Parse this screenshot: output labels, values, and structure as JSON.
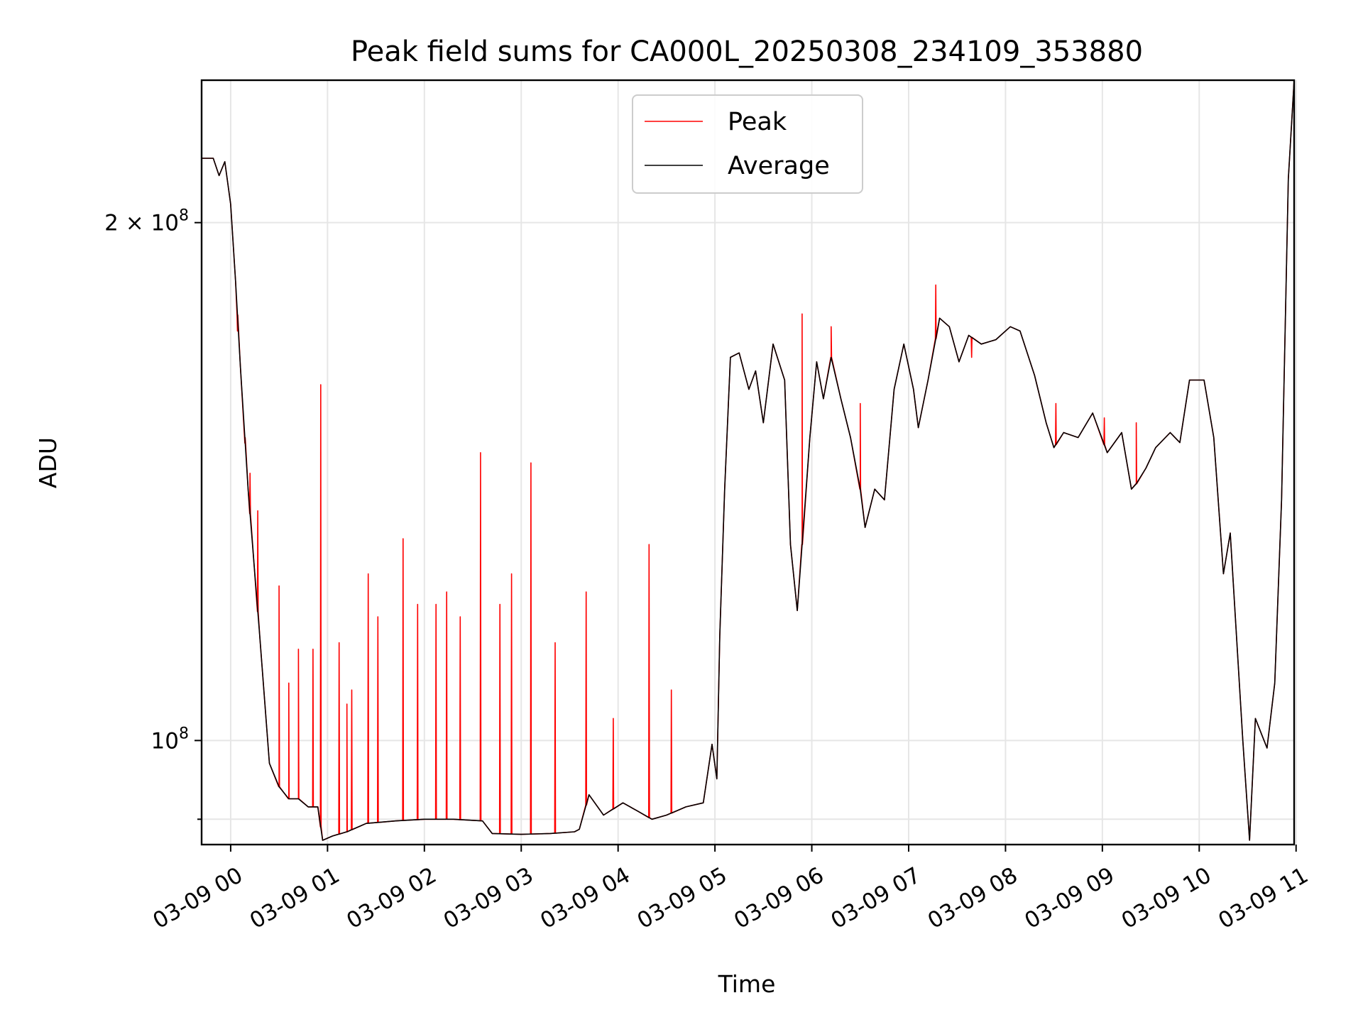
{
  "chart_data": {
    "type": "line",
    "title": "Peak field sums for CA000L_20250308_234109_353880",
    "xlabel": "Time",
    "ylabel": "ADU",
    "y_scale": "log",
    "x_range_hours": [
      -0.3,
      10.98
    ],
    "ylim": [
      87000000,
      242000000
    ],
    "grid": true,
    "legend_position": "upper-center",
    "x_ticks": [
      {
        "value": 0,
        "label": "03-09 00"
      },
      {
        "value": 1,
        "label": "03-09 01"
      },
      {
        "value": 2,
        "label": "03-09 02"
      },
      {
        "value": 3,
        "label": "03-09 03"
      },
      {
        "value": 4,
        "label": "03-09 04"
      },
      {
        "value": 5,
        "label": "03-09 05"
      },
      {
        "value": 6,
        "label": "03-09 06"
      },
      {
        "value": 7,
        "label": "03-09 07"
      },
      {
        "value": 8,
        "label": "03-09 08"
      },
      {
        "value": 9,
        "label": "03-09 09"
      },
      {
        "value": 10,
        "label": "03-09 10"
      },
      {
        "value": 11,
        "label": "03-09 11"
      }
    ],
    "y_ticks": [
      {
        "value": 100000000,
        "mantissa": "",
        "exponent": "8",
        "base": "10"
      },
      {
        "value": 200000000,
        "mantissa": "2 × ",
        "exponent": "8",
        "base": "10"
      }
    ],
    "y_minor_ticks": [
      90000000
    ],
    "series": [
      {
        "name": "Peak",
        "color": "#ff0000",
        "spikes": [
          [
            0.07,
            173000000
          ],
          [
            0.15,
            150000000
          ],
          [
            0.2,
            143000000
          ],
          [
            0.28,
            136000000
          ],
          [
            0.5,
            123000000
          ],
          [
            0.6,
            108000000
          ],
          [
            0.7,
            113000000
          ],
          [
            0.85,
            113000000
          ],
          [
            0.93,
            161000000
          ],
          [
            1.12,
            114000000
          ],
          [
            1.2,
            105000000
          ],
          [
            1.25,
            107000000
          ],
          [
            1.42,
            125000000
          ],
          [
            1.52,
            118000000
          ],
          [
            1.78,
            131000000
          ],
          [
            1.93,
            120000000
          ],
          [
            2.12,
            120000000
          ],
          [
            2.23,
            122000000
          ],
          [
            2.37,
            118000000
          ],
          [
            2.58,
            147000000
          ],
          [
            2.78,
            120000000
          ],
          [
            2.9,
            125000000
          ],
          [
            3.1,
            145000000
          ],
          [
            3.35,
            114000000
          ],
          [
            3.67,
            122000000
          ],
          [
            3.95,
            103000000
          ],
          [
            4.32,
            130000000
          ],
          [
            4.55,
            107000000
          ],
          [
            5.9,
            177000000
          ],
          [
            6.2,
            174000000
          ],
          [
            6.5,
            157000000
          ],
          [
            7.28,
            184000000
          ],
          [
            7.65,
            167000000
          ],
          [
            8.52,
            157000000
          ],
          [
            9.02,
            154000000
          ],
          [
            9.35,
            153000000
          ]
        ]
      },
      {
        "name": "Average",
        "color": "#000000",
        "points": [
          [
            -0.3,
            218000000
          ],
          [
            -0.18,
            218000000
          ],
          [
            -0.12,
            213000000
          ],
          [
            -0.06,
            217000000
          ],
          [
            0.0,
            205000000
          ],
          [
            0.05,
            185000000
          ],
          [
            0.1,
            165000000
          ],
          [
            0.18,
            140000000
          ],
          [
            0.3,
            115000000
          ],
          [
            0.4,
            97000000
          ],
          [
            0.5,
            94000000
          ],
          [
            0.6,
            92500000
          ],
          [
            0.7,
            92500000
          ],
          [
            0.8,
            91500000
          ],
          [
            0.9,
            91500000
          ],
          [
            0.95,
            87500000
          ],
          [
            1.05,
            88000000
          ],
          [
            1.2,
            88500000
          ],
          [
            1.4,
            89500000
          ],
          [
            1.7,
            89800000
          ],
          [
            2.0,
            90000000
          ],
          [
            2.3,
            90000000
          ],
          [
            2.6,
            89800000
          ],
          [
            2.7,
            88300000
          ],
          [
            3.0,
            88200000
          ],
          [
            3.3,
            88300000
          ],
          [
            3.55,
            88500000
          ],
          [
            3.6,
            88800000
          ],
          [
            3.7,
            93000000
          ],
          [
            3.85,
            90500000
          ],
          [
            4.05,
            92000000
          ],
          [
            4.2,
            91000000
          ],
          [
            4.35,
            90000000
          ],
          [
            4.5,
            90500000
          ],
          [
            4.7,
            91500000
          ],
          [
            4.88,
            92000000
          ],
          [
            4.97,
            99500000
          ],
          [
            5.02,
            95000000
          ],
          [
            5.05,
            115000000
          ],
          [
            5.1,
            140000000
          ],
          [
            5.16,
            167000000
          ],
          [
            5.25,
            168000000
          ],
          [
            5.35,
            160000000
          ],
          [
            5.42,
            164000000
          ],
          [
            5.5,
            153000000
          ],
          [
            5.6,
            170000000
          ],
          [
            5.72,
            162000000
          ],
          [
            5.78,
            130000000
          ],
          [
            5.85,
            119000000
          ],
          [
            5.9,
            130000000
          ],
          [
            5.98,
            150000000
          ],
          [
            6.05,
            166000000
          ],
          [
            6.12,
            158000000
          ],
          [
            6.2,
            167000000
          ],
          [
            6.3,
            158000000
          ],
          [
            6.4,
            150000000
          ],
          [
            6.5,
            140000000
          ],
          [
            6.55,
            133000000
          ],
          [
            6.65,
            140000000
          ],
          [
            6.75,
            138000000
          ],
          [
            6.85,
            160000000
          ],
          [
            6.95,
            170000000
          ],
          [
            7.05,
            160000000
          ],
          [
            7.1,
            152000000
          ],
          [
            7.2,
            162000000
          ],
          [
            7.32,
            176000000
          ],
          [
            7.42,
            174000000
          ],
          [
            7.52,
            166000000
          ],
          [
            7.62,
            172000000
          ],
          [
            7.75,
            170000000
          ],
          [
            7.9,
            171000000
          ],
          [
            8.05,
            174000000
          ],
          [
            8.15,
            173000000
          ],
          [
            8.3,
            163000000
          ],
          [
            8.42,
            153000000
          ],
          [
            8.5,
            148000000
          ],
          [
            8.6,
            151000000
          ],
          [
            8.75,
            150000000
          ],
          [
            8.9,
            155000000
          ],
          [
            9.05,
            147000000
          ],
          [
            9.2,
            151000000
          ],
          [
            9.3,
            140000000
          ],
          [
            9.35,
            141000000
          ],
          [
            9.45,
            144000000
          ],
          [
            9.55,
            148000000
          ],
          [
            9.7,
            151000000
          ],
          [
            9.8,
            149000000
          ],
          [
            9.9,
            162000000
          ],
          [
            10.05,
            162000000
          ],
          [
            10.15,
            150000000
          ],
          [
            10.25,
            125000000
          ],
          [
            10.32,
            132000000
          ],
          [
            10.45,
            100000000
          ],
          [
            10.52,
            87500000
          ],
          [
            10.58,
            103000000
          ],
          [
            10.7,
            99000000
          ],
          [
            10.78,
            108000000
          ],
          [
            10.85,
            138000000
          ],
          [
            10.92,
            212000000
          ],
          [
            10.98,
            242000000
          ]
        ]
      }
    ]
  }
}
